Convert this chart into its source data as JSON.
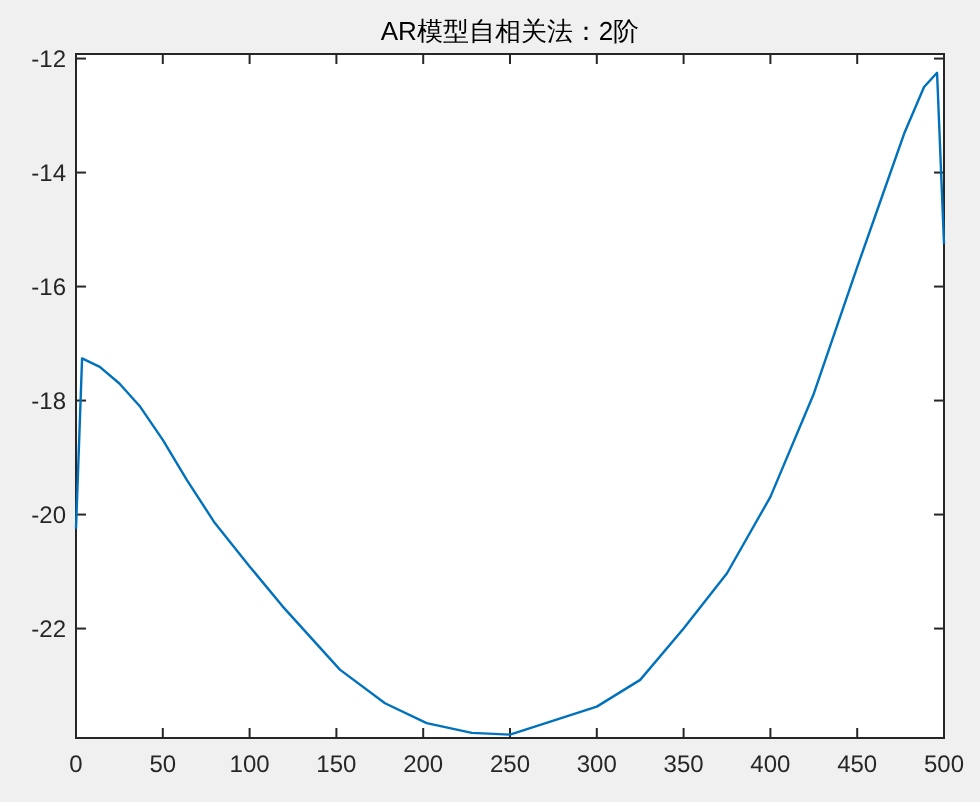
{
  "chart_data": {
    "type": "line",
    "title": "AR模型自相关法：2阶",
    "x": [
      0,
      3.5,
      13.7,
      25,
      37,
      50,
      64,
      80,
      100,
      119,
      152,
      178,
      202,
      228,
      250,
      300,
      325,
      350,
      375,
      400,
      425,
      450,
      463.5,
      477,
      488.5,
      496,
      500
    ],
    "series": [
      {
        "color": "#0072bd",
        "values": [
          -20.25,
          -17.26,
          -17.41,
          -17.7,
          -18.11,
          -18.69,
          -19.4,
          -20.15,
          -20.91,
          -21.61,
          -22.72,
          -23.31,
          -23.66,
          -23.83,
          -23.86,
          -23.37,
          -22.9,
          -22.0,
          -21.03,
          -19.69,
          -17.88,
          -15.66,
          -14.49,
          -13.32,
          -12.5,
          -12.25,
          -15.25
        ]
      }
    ],
    "xlim": [
      0,
      500
    ],
    "xticks": [
      0,
      50,
      100,
      150,
      200,
      250,
      300,
      350,
      400,
      450,
      500
    ],
    "ylim": [
      -23.92,
      -11.92
    ],
    "yticks": [
      -22,
      -20,
      -18,
      -16,
      -14,
      -12
    ],
    "grid": false
  }
}
